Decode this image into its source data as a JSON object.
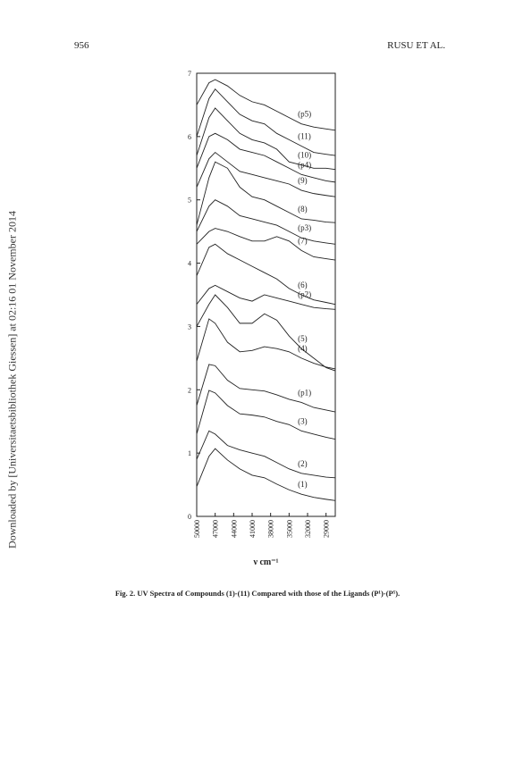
{
  "header": {
    "page_number": "956",
    "running_head": "RUSU ET AL."
  },
  "side_note": "Downloaded by [Universitaetsbibliothek Giessen] at 02:16 01 November 2014",
  "chart_data": {
    "type": "line",
    "x_label": "ν cm⁻¹",
    "x": [
      50000,
      48000,
      47000,
      45000,
      43000,
      41000,
      39000,
      37000,
      35000,
      33000,
      31000,
      29000,
      27500
    ],
    "xlim": [
      50000,
      27500
    ],
    "xticks": [
      50000,
      47000,
      44000,
      41000,
      38000,
      35000,
      32000,
      29000
    ],
    "ylim": [
      0,
      7
    ],
    "yticks": [
      0,
      1,
      2,
      3,
      4,
      5,
      6,
      7
    ],
    "color": "#222222",
    "series": [
      {
        "name": "(1)",
        "values": [
          0.47,
          0.95,
          1.07,
          0.89,
          0.75,
          0.65,
          0.61,
          0.51,
          0.42,
          0.35,
          0.3,
          0.27,
          0.25
        ]
      },
      {
        "name": "(2)",
        "values": [
          0.9,
          1.35,
          1.3,
          1.12,
          1.05,
          1.0,
          0.95,
          0.85,
          0.75,
          0.68,
          0.65,
          0.62,
          0.61
        ]
      },
      {
        "name": "(3)",
        "values": [
          1.3,
          1.99,
          1.95,
          1.75,
          1.62,
          1.6,
          1.57,
          1.5,
          1.45,
          1.35,
          1.3,
          1.25,
          1.22
        ]
      },
      {
        "name": "(p1)",
        "values": [
          1.75,
          2.4,
          2.38,
          2.15,
          2.02,
          2.0,
          1.98,
          1.92,
          1.85,
          1.8,
          1.72,
          1.68,
          1.65
        ]
      },
      {
        "name": "(4)",
        "values": [
          2.45,
          3.12,
          3.05,
          2.75,
          2.6,
          2.62,
          2.68,
          2.65,
          2.6,
          2.5,
          2.42,
          2.36,
          2.33
        ]
      },
      {
        "name": "(5)",
        "values": [
          3.0,
          3.35,
          3.5,
          3.3,
          3.05,
          3.05,
          3.2,
          3.1,
          2.85,
          2.65,
          2.5,
          2.35,
          2.3
        ]
      },
      {
        "name": "(p2)",
        "values": [
          3.35,
          3.6,
          3.65,
          3.55,
          3.45,
          3.4,
          3.5,
          3.45,
          3.4,
          3.35,
          3.3,
          3.28,
          3.27
        ]
      },
      {
        "name": "(6)",
        "values": [
          3.8,
          4.25,
          4.3,
          4.15,
          4.05,
          3.95,
          3.85,
          3.75,
          3.6,
          3.5,
          3.42,
          3.38,
          3.35
        ]
      },
      {
        "name": "(7)",
        "values": [
          4.3,
          4.5,
          4.55,
          4.5,
          4.42,
          4.35,
          4.35,
          4.42,
          4.35,
          4.2,
          4.1,
          4.07,
          4.05
        ]
      },
      {
        "name": "(p3)",
        "values": [
          4.5,
          4.9,
          5.0,
          4.9,
          4.75,
          4.7,
          4.65,
          4.6,
          4.5,
          4.4,
          4.35,
          4.32,
          4.3
        ]
      },
      {
        "name": "(8)",
        "values": [
          4.6,
          5.35,
          5.6,
          5.5,
          5.2,
          5.05,
          5.0,
          4.9,
          4.8,
          4.7,
          4.68,
          4.65,
          4.64
        ]
      },
      {
        "name": "(9)",
        "values": [
          5.2,
          5.65,
          5.75,
          5.6,
          5.45,
          5.4,
          5.35,
          5.3,
          5.25,
          5.15,
          5.1,
          5.07,
          5.05
        ]
      },
      {
        "name": "(p4)",
        "values": [
          5.5,
          6.0,
          6.05,
          5.95,
          5.8,
          5.75,
          5.7,
          5.6,
          5.5,
          5.4,
          5.35,
          5.3,
          5.28
        ]
      },
      {
        "name": "(10)",
        "values": [
          5.7,
          6.3,
          6.45,
          6.25,
          6.05,
          5.95,
          5.9,
          5.8,
          5.6,
          5.55,
          5.5,
          5.5,
          5.48
        ]
      },
      {
        "name": "(11)",
        "values": [
          6.0,
          6.6,
          6.75,
          6.55,
          6.35,
          6.25,
          6.2,
          6.05,
          5.95,
          5.85,
          5.75,
          5.72,
          5.7
        ]
      },
      {
        "name": "(p5)",
        "values": [
          6.5,
          6.85,
          6.9,
          6.8,
          6.65,
          6.55,
          6.5,
          6.4,
          6.3,
          6.2,
          6.15,
          6.12,
          6.1
        ]
      }
    ]
  },
  "caption": "Fig. 2. UV Spectra of Compounds (1)-(11) Compared with those of the Ligands (P¹)-(P⁵)."
}
